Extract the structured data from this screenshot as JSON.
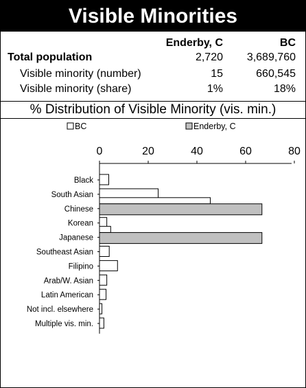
{
  "title": "Visible Minorities",
  "stats": {
    "headers": [
      "",
      "Enderby, C",
      "BC"
    ],
    "rows": [
      {
        "label": "Total population",
        "enderby": "2,720",
        "bc": "3,689,760"
      },
      {
        "label": "Visible minority (number)",
        "enderby": "15",
        "bc": "660,545"
      },
      {
        "label": "Visible minority (share)",
        "enderby": "1%",
        "bc": "18%"
      }
    ]
  },
  "chart_title": "% Distribution of Visible Minority (vis. min.)",
  "colors": {
    "bc": "#ffffff",
    "enderby": "#c0c0c0",
    "ink": "#000000"
  },
  "chart_data": {
    "type": "bar",
    "orientation": "horizontal",
    "title": "% Distribution of Visible Minority (vis. min.)",
    "categories": [
      "Black",
      "South Asian",
      "Chinese",
      "Korean",
      "Japanese",
      "Southeast Asian",
      "Filipino",
      "Arab/W. Asian",
      "Latin American",
      "Not incl. elsewhere",
      "Multiple vis. min."
    ],
    "series": [
      {
        "name": "BC",
        "values": [
          3.8,
          24.1,
          45.5,
          3.0,
          4.6,
          4.0,
          7.4,
          3.0,
          2.7,
          1.0,
          1.8
        ]
      },
      {
        "name": "Enderby, C",
        "values": [
          0,
          0,
          66.7,
          0,
          66.7,
          0,
          0,
          0,
          0,
          0,
          0
        ]
      }
    ],
    "xlim": [
      0,
      80
    ],
    "xticks": [
      0,
      20,
      40,
      60,
      80
    ],
    "x_axis_position": "top",
    "legend_position": "top",
    "grid": false
  }
}
